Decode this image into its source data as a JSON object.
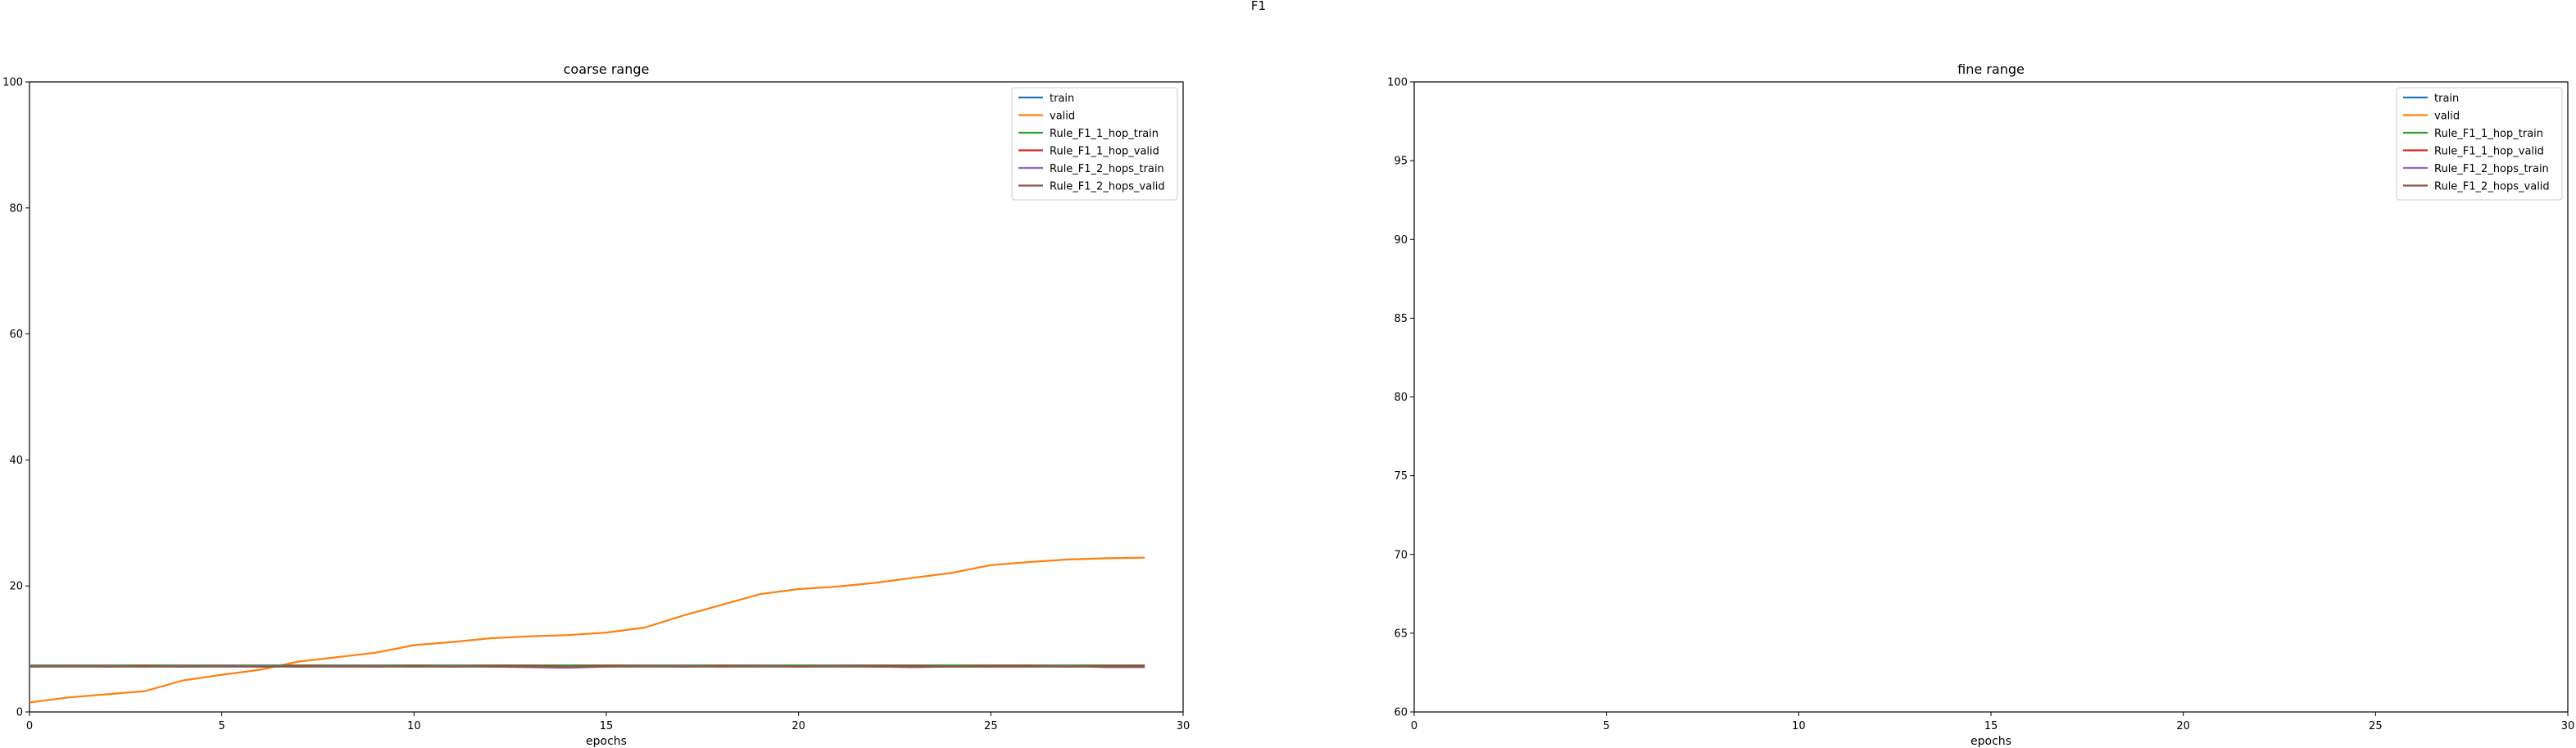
{
  "figure": {
    "suptitle": "F1"
  },
  "legend_labels": [
    "train",
    "valid",
    "Rule_F1_1_hop_train",
    "Rule_F1_1_hop_valid",
    "Rule_F1_2_hops_train",
    "Rule_F1_2_hops_valid"
  ],
  "chart_data": [
    {
      "type": "line",
      "title": "coarse range",
      "xlabel": "epochs",
      "ylabel": "",
      "xlim": [
        0,
        30
      ],
      "ylim": [
        0,
        100
      ],
      "xticks": [
        0,
        5,
        10,
        15,
        20,
        25,
        30
      ],
      "yticks": [
        0,
        20,
        40,
        60,
        80,
        100
      ],
      "grid": false,
      "legend_position": "top-right",
      "x": [
        0,
        1,
        2,
        3,
        4,
        5,
        6,
        7,
        8,
        9,
        10,
        11,
        12,
        13,
        14,
        15,
        16,
        17,
        18,
        19,
        20,
        21,
        22,
        23,
        24,
        25,
        26,
        27,
        28,
        29
      ],
      "series": [
        {
          "name": "train",
          "color": "#1f77b4",
          "values": [
            7.3,
            7.3,
            7.3,
            7.3,
            7.3,
            7.3,
            7.3,
            7.3,
            7.3,
            7.3,
            7.3,
            7.3,
            7.3,
            7.3,
            7.3,
            7.3,
            7.3,
            7.3,
            7.3,
            7.3,
            7.3,
            7.3,
            7.3,
            7.3,
            7.3,
            7.3,
            7.3,
            7.3,
            7.3,
            7.3
          ]
        },
        {
          "name": "valid",
          "color": "#ff7f0e",
          "values": [
            1.5,
            2.3,
            2.8,
            3.3,
            5.0,
            5.9,
            6.7,
            8.0,
            8.7,
            9.4,
            10.6,
            11.1,
            11.7,
            12.0,
            12.2,
            12.6,
            13.4,
            15.3,
            17.0,
            18.7,
            19.5,
            19.9,
            20.5,
            21.3,
            22.1,
            23.3,
            23.8,
            24.2,
            24.4,
            24.5
          ]
        },
        {
          "name": "Rule_F1_1_hop_train",
          "color": "#2ca02c",
          "values": [
            7.4,
            7.4,
            7.4,
            7.4,
            7.4,
            7.4,
            7.4,
            7.4,
            7.4,
            7.4,
            7.4,
            7.4,
            7.4,
            7.4,
            7.4,
            7.4,
            7.4,
            7.4,
            7.4,
            7.4,
            7.4,
            7.4,
            7.4,
            7.4,
            7.4,
            7.4,
            7.4,
            7.4,
            7.4,
            7.4
          ]
        },
        {
          "name": "Rule_F1_1_hop_valid",
          "color": "#d62728",
          "values": [
            7.2,
            7.3,
            7.2,
            7.3,
            7.2,
            7.3,
            7.2,
            7.3,
            7.3,
            7.2,
            7.3,
            7.2,
            7.3,
            7.3,
            7.2,
            7.3,
            7.3,
            7.2,
            7.3,
            7.3,
            7.2,
            7.3,
            7.3,
            7.3,
            7.2,
            7.3,
            7.3,
            7.2,
            7.3,
            7.3
          ]
        },
        {
          "name": "Rule_F1_2_hops_train",
          "color": "#9467bd",
          "values": [
            7.3,
            7.3,
            7.3,
            7.2,
            7.3,
            7.3,
            7.3,
            7.2,
            7.3,
            7.3,
            7.2,
            7.3,
            7.2,
            7.1,
            7.0,
            7.2,
            7.3,
            7.3,
            7.2,
            7.3,
            7.2,
            7.3,
            7.2,
            7.1,
            7.2,
            7.2,
            7.2,
            7.3,
            7.1,
            7.1
          ]
        },
        {
          "name": "Rule_F1_2_hops_valid",
          "color": "#8c564b",
          "values": [
            7.2,
            7.2,
            7.2,
            7.2,
            7.2,
            7.2,
            7.2,
            7.2,
            7.2,
            7.2,
            7.2,
            7.2,
            7.2,
            7.2,
            7.2,
            7.2,
            7.2,
            7.2,
            7.2,
            7.2,
            7.2,
            7.2,
            7.2,
            7.2,
            7.2,
            7.2,
            7.2,
            7.2,
            7.2,
            7.2
          ]
        }
      ]
    },
    {
      "type": "line",
      "title": "fine range",
      "xlabel": "epochs",
      "ylabel": "",
      "xlim": [
        0,
        30
      ],
      "ylim": [
        60,
        100
      ],
      "xticks": [
        0,
        5,
        10,
        15,
        20,
        25,
        30
      ],
      "yticks": [
        60,
        65,
        70,
        75,
        80,
        85,
        90,
        95,
        100
      ],
      "grid": false,
      "legend_position": "top-right",
      "x": [],
      "series": []
    }
  ]
}
